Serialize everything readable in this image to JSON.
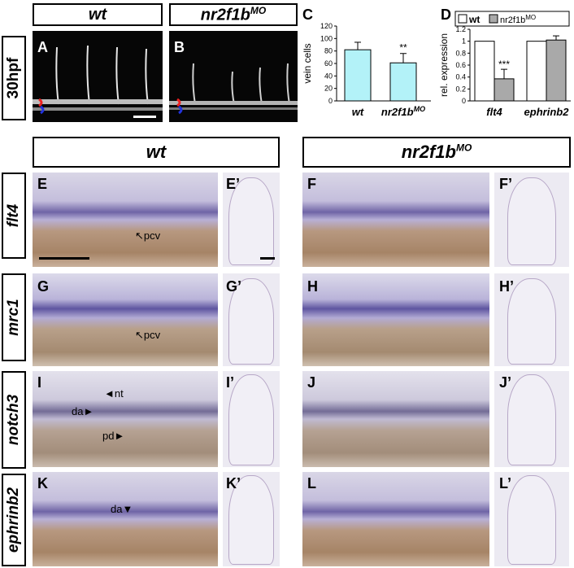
{
  "headers": {
    "top_wt": "wt",
    "top_mo_base": "nr2f1b",
    "top_mo_sup": "MO",
    "mid_wt": "wt",
    "mid_mo_base": "nr2f1b",
    "mid_mo_sup": "MO"
  },
  "row_labels": {
    "stage": "30hpf",
    "flt4": "flt4",
    "mrc1": "mrc1",
    "notch3": "notch3",
    "ephrinb2": "ephrinb2"
  },
  "panel_letters": {
    "A": "A",
    "B": "B",
    "C": "C",
    "D": "D",
    "E": "E",
    "E2": "E’",
    "F": "F",
    "F2": "F’",
    "G": "G",
    "G2": "G’",
    "H": "H",
    "H2": "H’",
    "I": "I",
    "I2": "I’",
    "J": "J",
    "J2": "J’",
    "K": "K",
    "K2": "K’",
    "L": "L",
    "L2": "L’"
  },
  "annotations": {
    "pcv_e": "pcv",
    "pcv_g": "pcv",
    "nt": "nt",
    "da_i": "da",
    "pd": "pd",
    "da_k": "da"
  },
  "chart_data": [
    {
      "type": "bar",
      "categories": [
        "wt",
        "nr2f1b^MO"
      ],
      "values": [
        82,
        61
      ],
      "errors": [
        12,
        15
      ],
      "ylabel": "vein cells",
      "ylim": [
        0,
        120
      ],
      "yticks": [
        0,
        20,
        40,
        60,
        80,
        100,
        120
      ],
      "significance": "**",
      "colors": {
        "bar": "#b3f2f8"
      },
      "labels": {
        "cat1": "wt",
        "cat2_base": "nr2f1b",
        "cat2_sup": "MO"
      }
    },
    {
      "type": "bar",
      "categories": [
        "flt4",
        "ephrinb2"
      ],
      "series": [
        {
          "name": "wt",
          "values": [
            1.0,
            1.0
          ],
          "errors": [
            0,
            0
          ]
        },
        {
          "name": "nr2f1b^MO",
          "values": [
            0.37,
            1.02
          ],
          "errors": [
            0.16,
            0.07
          ]
        }
      ],
      "ylabel": "rel. expression",
      "ylim": [
        0,
        1.2
      ],
      "yticks": [
        "0",
        "0.2",
        "0.4",
        "0.6",
        "0.8",
        "1",
        "1.2"
      ],
      "significance": "***",
      "colors": {
        "wt": "#ffffff",
        "mo": "#a9a9a9"
      },
      "legend": {
        "wt": "wt",
        "mo_base": "nr2f1b",
        "mo_sup": "MO"
      },
      "legend_position": "top"
    }
  ]
}
